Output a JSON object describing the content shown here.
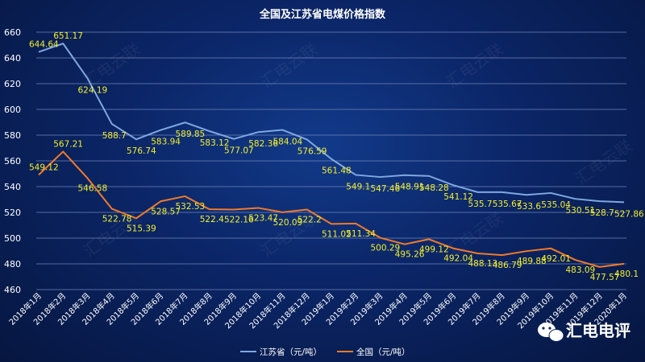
{
  "watermark": "汇电云联",
  "badge": {
    "text": "汇电电评"
  },
  "colors": {
    "jiangsu": "#7fa8e0",
    "national": "#f07a28",
    "labels": "#f3ef2a"
  },
  "chart_data": {
    "type": "line",
    "title": "全国及江苏省电煤价格指数",
    "categories": [
      "2018年1月",
      "2018年2月",
      "2018年3月",
      "2018年4月",
      "2018年5月",
      "2018年6月",
      "2018年7月",
      "2018年8月",
      "2018年9月",
      "2018年10月",
      "2018年11月",
      "2018年12月",
      "2019年1月",
      "2019年2月",
      "2019年3月",
      "2019年4月",
      "2019年5月",
      "2019年6月",
      "2019年7月",
      "2019年8月",
      "2019年9月",
      "2019年10月",
      "2019年11月",
      "2019年12月",
      "2020年1月"
    ],
    "ylim": [
      460,
      660
    ],
    "yticks": [
      460,
      480,
      500,
      520,
      540,
      560,
      580,
      600,
      620,
      640,
      660
    ],
    "grid": true,
    "legend_position": "bottom",
    "series": [
      {
        "name": "江苏省（元/吨）",
        "color": "#7fa8e0",
        "values": [
          644.64,
          651.17,
          624.19,
          588.7,
          576.74,
          583.94,
          589.85,
          583.12,
          577.07,
          582.36,
          584.04,
          576.59,
          561.48,
          549.1,
          547.46,
          548.91,
          548.28,
          541.12,
          535.7,
          535.67,
          533.6,
          535.04,
          530.51,
          528.7,
          527.86
        ],
        "labels": [
          "644.64",
          "651.17",
          "624.19",
          "588.7",
          "576.74",
          "583.94",
          "589.85",
          "583.12",
          "577.07",
          "582.36",
          "584.04",
          "576.59",
          "561.48",
          "549.1",
          "547.46",
          "548.91",
          "548.28",
          "541.12",
          "535.7",
          "535.67",
          "533.6",
          "535.04",
          "530.51",
          "528.7",
          "527.86"
        ]
      },
      {
        "name": "全国（元/吨）",
        "color": "#f07a28",
        "values": [
          549.12,
          567.21,
          546.58,
          522.78,
          515.39,
          528.57,
          532.53,
          522.4,
          522.16,
          523.47,
          520.09,
          522.2,
          511.02,
          511.34,
          500.29,
          495.26,
          499.12,
          492.04,
          488.13,
          486.79,
          489.88,
          492.01,
          483.09,
          477.57,
          480.1
        ],
        "labels": [
          "549.12",
          "567.21",
          "546.58",
          "522.78",
          "515.39",
          "528.57",
          "532.53",
          "522.4",
          "522.16",
          "523.47",
          "520.09",
          "522.2",
          "511.02",
          "511.34",
          "500.29",
          "495.26",
          "499.12",
          "492.04",
          "488.13",
          "486.79",
          "489.88",
          "492.01",
          "483.09",
          "477.57",
          "480.1"
        ]
      }
    ]
  }
}
